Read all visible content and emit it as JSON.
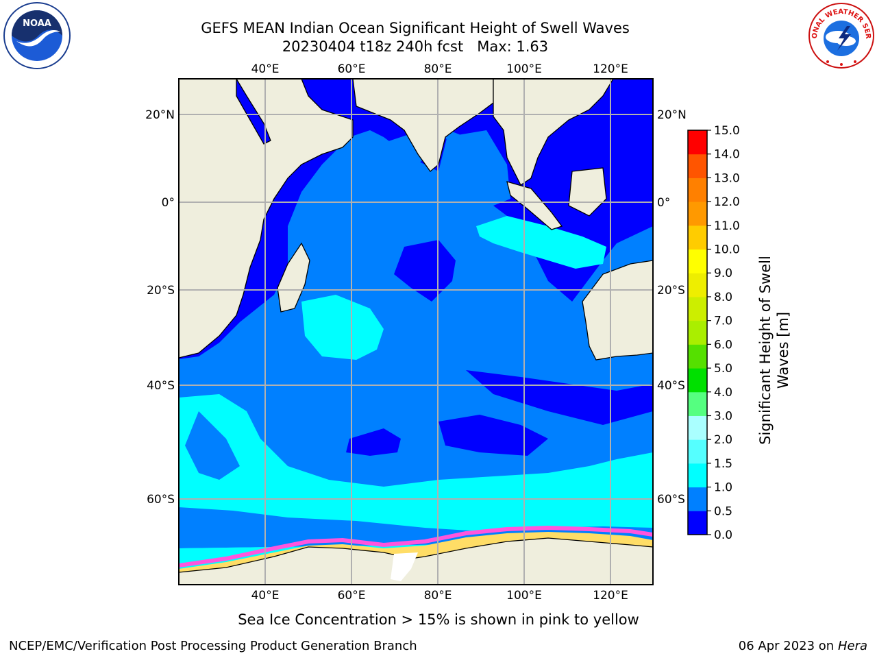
{
  "title": {
    "line1": "GEFS MEAN Indian Ocean Significant Height of Swell Waves",
    "line2": "20230404 t18z 240h fcst   Max: 1.63"
  },
  "logos": {
    "left": {
      "icon": "noaa-logo-icon",
      "text": "NOAA"
    },
    "right": {
      "icon": "nws-logo-icon",
      "text": "NATIONAL WEATHER SERVICE"
    }
  },
  "map": {
    "lon_labels": [
      "40°E",
      "60°E",
      "80°E",
      "100°E",
      "120°E"
    ],
    "lat_labels": [
      "20°N",
      "0°",
      "20°S",
      "40°S",
      "60°S"
    ],
    "land_color": "#efeedd",
    "ocean_colors": {
      "low": "#0000ff",
      "mid": "#0080ff",
      "high": "#00ffff"
    }
  },
  "colorbar": {
    "label_line1": "Significant Height of Swell",
    "label_line2": "Waves [m]",
    "levels": [
      "0.0",
      "0.5",
      "1.0",
      "1.5",
      "2.0",
      "3.0",
      "4.0",
      "5.0",
      "6.0",
      "7.0",
      "8.0",
      "9.0",
      "10.0",
      "11.0",
      "12.0",
      "13.0",
      "14.0",
      "15.0"
    ],
    "colors": [
      "#0000ff",
      "#0080ff",
      "#00ffff",
      "#55ffff",
      "#aaffff",
      "#55ff80",
      "#00e000",
      "#55e000",
      "#aaee00",
      "#ccee00",
      "#eeee00",
      "#ffff00",
      "#ffcc00",
      "#ff9900",
      "#ff8000",
      "#ff5500",
      "#ff0000"
    ]
  },
  "footer": {
    "note": "Sea Ice Concentration > 15% is shown in pink to yellow",
    "left": "NCEP/EMC/Verification Post Processing Product Generation Branch",
    "right_date": "06 Apr 2023 on ",
    "right_host": "Hera"
  }
}
